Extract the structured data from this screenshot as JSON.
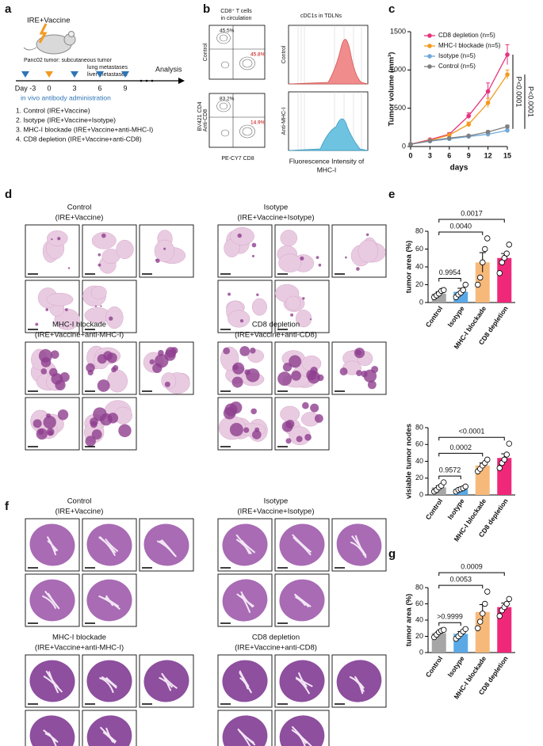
{
  "panel_labels": [
    "a",
    "b",
    "c",
    "d",
    "e",
    "f",
    "g"
  ],
  "panel_a": {
    "treatment": "IRE+Vaccine",
    "model_lines": [
      "Panc02 tumor: subcutaneous tumor",
      "lung metastases",
      "liver metastases"
    ],
    "days": [
      "Day -3",
      "0",
      "3",
      "6",
      "9"
    ],
    "end_label": "Analysis",
    "legend": "in vivo antibody administration",
    "groups": [
      "1. Control (IRE+Vaccine)",
      "2. Isotype (IRE+Vaccine+Isotype)",
      "3. MHC-I blockade (IRE+Vaccine+anti-MHC-I)",
      "4. CD8 depletion (IRE+Vaccine+anti-CD8)"
    ]
  },
  "panel_b": {
    "flow_title": [
      "CD8⁺ T cells",
      "in circulation"
    ],
    "flow_plots": [
      {
        "row_label": "Control",
        "upper_left": "45.5%",
        "lower_right": "45.8%"
      },
      {
        "row_label": "Anti-CD8",
        "upper_left": "83.2%",
        "lower_right": "14.9%"
      }
    ],
    "flow_y_axis": "BV421 CD4",
    "flow_x_axis": "PE-CY7 CD8",
    "hist_title": "cDC1s in TDLNs",
    "hist_rows": [
      "Control",
      "Anti-MHC-I"
    ],
    "hist_x_axis": [
      "Fluorescence Intensity of",
      "MHC-I"
    ]
  },
  "panel_d": {
    "groups": [
      {
        "title": "Control",
        "subtitle": "(IRE+Vaccine)"
      },
      {
        "title": "Isotype",
        "subtitle": "(IRE+Vaccine+Isotype)"
      },
      {
        "title": "MHC-I blockade",
        "subtitle": "(IRE+Vaccine+anti-MHC-I)"
      },
      {
        "title": "CD8 depletion",
        "subtitle": "(IRE+Vaccine+anti-CD8)"
      }
    ]
  },
  "panel_f": {
    "groups": [
      {
        "title": "Control",
        "subtitle": "(IRE+Vaccine)"
      },
      {
        "title": "Isotype",
        "subtitle": "(IRE+Vaccine+Isotype)"
      },
      {
        "title": "MHC-I blockade",
        "subtitle": "(IRE+Vaccine+anti-MHC-I)"
      },
      {
        "title": "CD8 depletion",
        "subtitle": "(IRE+Vaccine+anti-CD8)"
      }
    ]
  },
  "chart_data": [
    {
      "type": "line",
      "ylabel": "Tumor volume (mm³)",
      "xlabel": "days",
      "x": [
        0,
        3,
        6,
        9,
        12,
        15
      ],
      "xlim": [
        0,
        15
      ],
      "xticks": [
        0,
        3,
        6,
        9,
        12,
        15
      ],
      "ylim": [
        0,
        1500
      ],
      "yticks": [
        0,
        500,
        1000,
        1500
      ],
      "series": [
        {
          "name": "CD8 depletion (n=5)",
          "color": "#e8327c",
          "values": [
            30,
            90,
            160,
            400,
            720,
            1200
          ],
          "errors": [
            5,
            10,
            20,
            40,
            110,
            130
          ]
        },
        {
          "name": "MHC-I blockade (n=5)",
          "color": "#f39a1e",
          "values": [
            30,
            80,
            150,
            290,
            570,
            940
          ],
          "errors": [
            5,
            10,
            15,
            30,
            60,
            60
          ]
        },
        {
          "name": "Isotype (n=5)",
          "color": "#6fa8dc",
          "values": [
            30,
            70,
            100,
            130,
            160,
            210
          ],
          "errors": [
            5,
            8,
            10,
            12,
            15,
            20
          ]
        },
        {
          "name": "Control (n=5)",
          "color": "#7f7f7f",
          "values": [
            30,
            75,
            110,
            140,
            190,
            260
          ],
          "errors": [
            5,
            8,
            10,
            12,
            15,
            20
          ]
        }
      ],
      "annotations": [
        "P<0.0001",
        "P<0.0001"
      ]
    },
    {
      "type": "bar",
      "ylabel": "tumor area (%)",
      "categories": [
        "Control",
        "Isotype",
        "MHC-I blockade",
        "CD8 depletion"
      ],
      "colors": [
        "#a6a6a6",
        "#5aa9e6",
        "#f7b97a",
        "#f0287a"
      ],
      "values": [
        10,
        12,
        45,
        50
      ],
      "errors": [
        2,
        4,
        11,
        5
      ],
      "points": [
        [
          6,
          8,
          10,
          13,
          14
        ],
        [
          6,
          9,
          11,
          14,
          20
        ],
        [
          20,
          28,
          45,
          60,
          72
        ],
        [
          33,
          45,
          50,
          55,
          65
        ]
      ],
      "ylim": [
        0,
        80
      ],
      "yticks": [
        0,
        20,
        40,
        60,
        80
      ],
      "comparisons": [
        "0.9954",
        "0.0040",
        "0.0017"
      ]
    },
    {
      "type": "bar",
      "ylabel": "visiable tumor nodes",
      "categories": [
        "Control",
        "Isotype",
        "MHC-I blockade",
        "CD8 depletion"
      ],
      "colors": [
        "#a6a6a6",
        "#5aa9e6",
        "#f7b97a",
        "#f0287a"
      ],
      "values": [
        9,
        7,
        35,
        44
      ],
      "errors": [
        2,
        1.5,
        3,
        5
      ],
      "points": [
        [
          4,
          6,
          9,
          11,
          15
        ],
        [
          4,
          6,
          7,
          8,
          10
        ],
        [
          28,
          31,
          35,
          38,
          42
        ],
        [
          32,
          38,
          42,
          48,
          61
        ]
      ],
      "ylim": [
        0,
        80
      ],
      "yticks": [
        0,
        20,
        40,
        60,
        80
      ],
      "comparisons": [
        "0.9572",
        "0.0002",
        "<0.0001"
      ]
    },
    {
      "type": "bar",
      "ylabel": "tumor area (%)",
      "categories": [
        "Control",
        "Isotype",
        "MHC-I blockade",
        "CD8 depletion"
      ],
      "colors": [
        "#a6a6a6",
        "#5aa9e6",
        "#f7b97a",
        "#f0287a"
      ],
      "values": [
        24,
        23,
        50,
        56
      ],
      "errors": [
        2,
        3,
        9,
        5
      ],
      "points": [
        [
          19,
          22,
          25,
          27,
          28
        ],
        [
          17,
          20,
          23,
          26,
          29
        ],
        [
          30,
          38,
          48,
          60,
          75
        ],
        [
          45,
          52,
          56,
          60,
          66
        ]
      ],
      "ylim": [
        0,
        80
      ],
      "yticks": [
        0,
        20,
        40,
        60,
        80
      ],
      "comparisons": [
        ">0.9999",
        "0.0053",
        "0.0009"
      ]
    }
  ]
}
